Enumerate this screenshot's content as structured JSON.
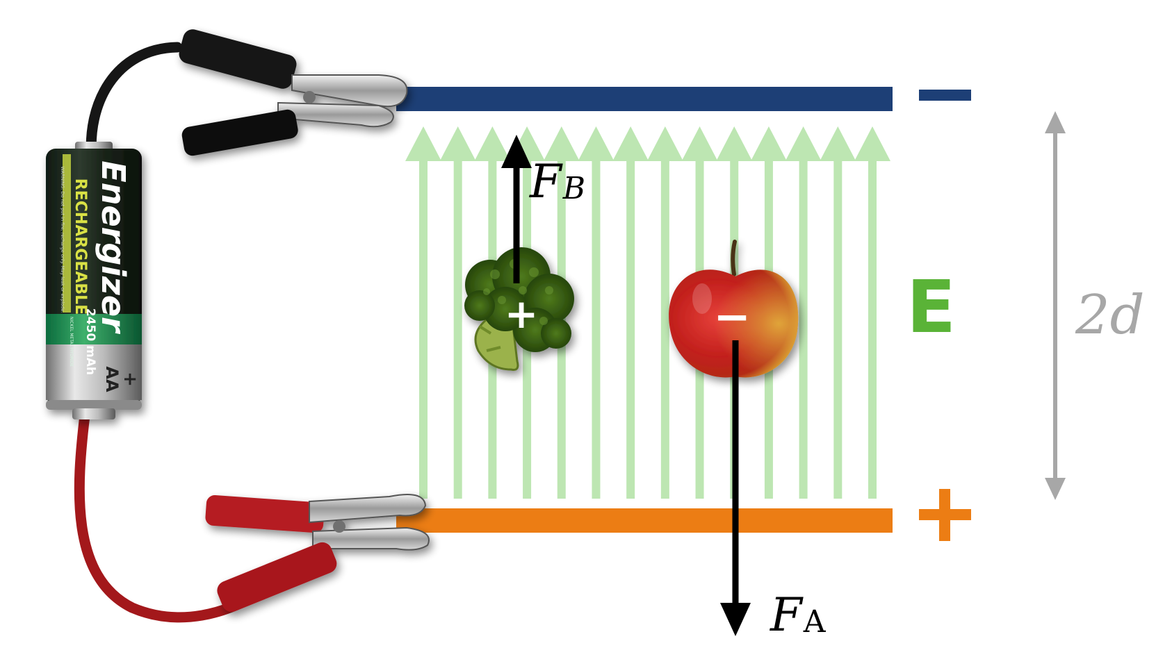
{
  "battery": {
    "brand": "Energizer",
    "subtitle": "RECHARGEABLE",
    "capacity": "2450 mAh",
    "size": "AA",
    "terminal": "+",
    "warning": "WARNING: Do not put in fire, recharge only. May leak or explode.",
    "chemistry": "NICKEL METAL HYDRIDE"
  },
  "plates": {
    "top_sign": "−",
    "bottom_sign": "+",
    "top_color": "#1d3f76",
    "bottom_color": "#ec7d14"
  },
  "field": {
    "label": "E",
    "arrow_count": 14,
    "color": "#bde6b2",
    "label_color": "#5ab337"
  },
  "separation": {
    "label": "2d",
    "color": "#a7a7a7"
  },
  "broccoli": {
    "charge": "+"
  },
  "apple": {
    "charge": "−"
  },
  "forces": {
    "fb": {
      "symbol": "F",
      "subscript": "B"
    },
    "fa": {
      "symbol": "F",
      "subscript": "A"
    }
  }
}
